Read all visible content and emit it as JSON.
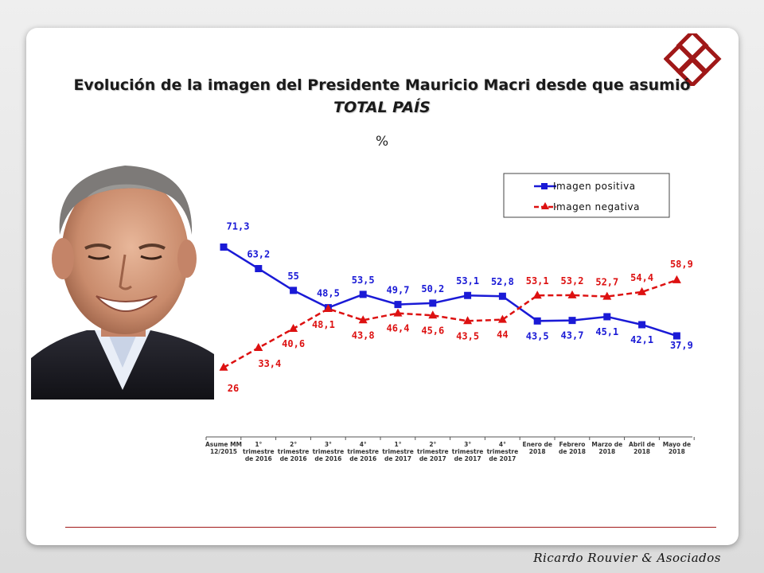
{
  "header": {
    "title": "Evolución de la imagen del Presidente Mauricio Macri desde que asumió",
    "subtitle": "TOTAL PAÍS",
    "unit": "%"
  },
  "footer": {
    "brand": "Ricardo Rouvier & Asociados"
  },
  "colors": {
    "positive": "#1a1ad6",
    "negative": "#dd1111",
    "accent": "#a01818"
  },
  "chart_data": {
    "type": "line",
    "categories": [
      [
        "Asume MM",
        "12/2015"
      ],
      [
        "1°",
        "trimestre",
        "de 2016"
      ],
      [
        "2°",
        "trimestre",
        "de 2016"
      ],
      [
        "3°",
        "trimestre",
        "de 2016"
      ],
      [
        "4°",
        "trimestre",
        "de 2016"
      ],
      [
        "1°",
        "trimestre",
        "de 2017"
      ],
      [
        "2°",
        "trimestre",
        "de 2017"
      ],
      [
        "3°",
        "trimestre",
        "de 2017"
      ],
      [
        "4°",
        "trimestre",
        "de 2017"
      ],
      [
        "Enero de",
        "2018"
      ],
      [
        "Febrero",
        "de 2018"
      ],
      [
        "Marzo de",
        "2018"
      ],
      [
        "Abril de",
        "2018"
      ],
      [
        "Mayo de",
        "2018"
      ]
    ],
    "series": [
      {
        "name": "Imagen positiva",
        "values": [
          71.3,
          63.2,
          55,
          48.5,
          53.5,
          49.7,
          50.2,
          53.1,
          52.8,
          43.5,
          43.7,
          45.1,
          42.1,
          37.9
        ],
        "labels": [
          "71,3",
          "63,2",
          "55",
          "48,5",
          "53,5",
          "49,7",
          "50,2",
          "53,1",
          "52,8",
          "43,5",
          "43,7",
          "45,1",
          "42,1",
          "37,9"
        ]
      },
      {
        "name": "Imagen negativa",
        "values": [
          26,
          33.4,
          40.6,
          48.1,
          43.8,
          46.4,
          45.6,
          43.5,
          44,
          53.1,
          53.2,
          52.7,
          54.4,
          58.9
        ],
        "labels": [
          "26",
          "33,4",
          "40,6",
          "48,1",
          "43,8",
          "46,4",
          "45,6",
          "43,5",
          "44",
          "53,1",
          "53,2",
          "52,7",
          "54,4",
          "58,9"
        ]
      }
    ],
    "legend": "top-right",
    "grid": false
  }
}
